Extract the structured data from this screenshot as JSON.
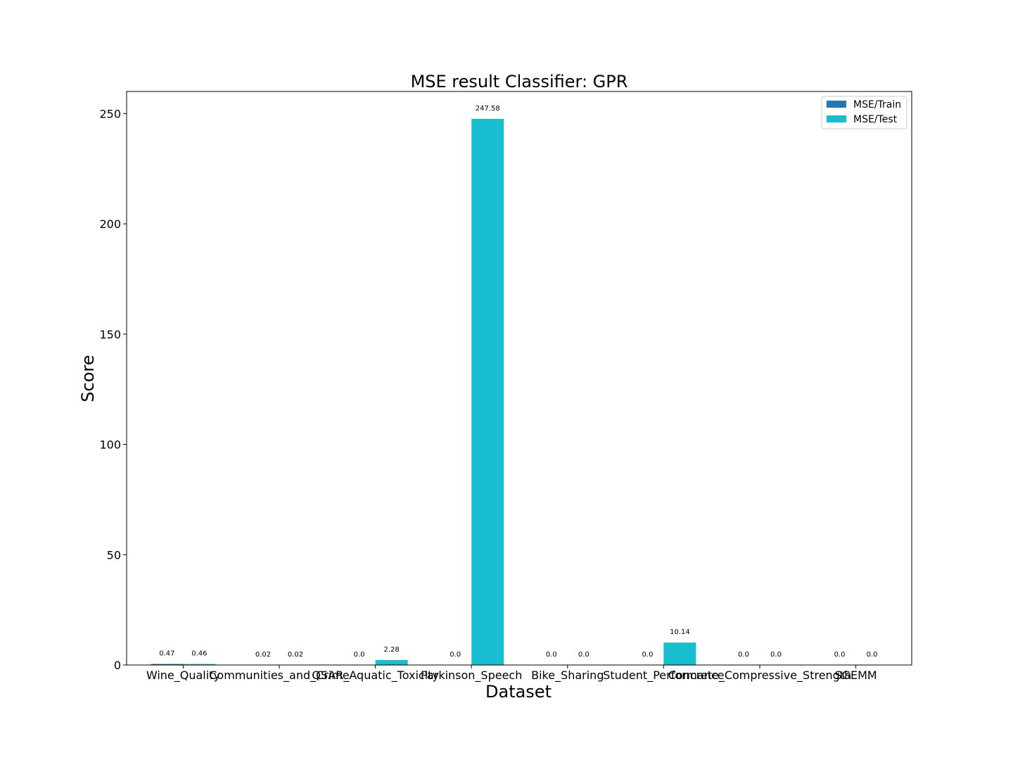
{
  "chart_data": {
    "type": "bar",
    "title": "MSE result Classifier: GPR",
    "xlabel": "Dataset",
    "ylabel": "Score",
    "ylim": [
      0,
      260
    ],
    "yticks": [
      0,
      50,
      100,
      150,
      200,
      250
    ],
    "grid": false,
    "legend_position": "top-right",
    "categories": [
      "Wine_Quality",
      "Communities_and_Crime",
      "QSAR_Aquatic_Toxicity",
      "Parkinson_Speech",
      "Bike_Sharing",
      "Student_Performance",
      "Concrete_Compressive_Strength",
      "SGEMM"
    ],
    "series": [
      {
        "name": "MSE/Train",
        "color": "#1f77b4",
        "values": [
          0.47,
          0.02,
          0.0,
          0.0,
          0.0,
          0.0,
          0.0,
          0.0
        ],
        "labels": [
          "0.47",
          "0.02",
          "0.0",
          "0.0",
          "0.0",
          "0.0",
          "0.0",
          "0.0"
        ]
      },
      {
        "name": "MSE/Test",
        "color": "#17becf",
        "values": [
          0.46,
          0.02,
          2.28,
          247.58,
          0.0,
          10.14,
          0.0,
          0.0
        ],
        "labels": [
          "0.46",
          "0.02",
          "2.28",
          "247.58",
          "0.0",
          "10.14",
          "0.0",
          "0.0"
        ]
      }
    ]
  }
}
